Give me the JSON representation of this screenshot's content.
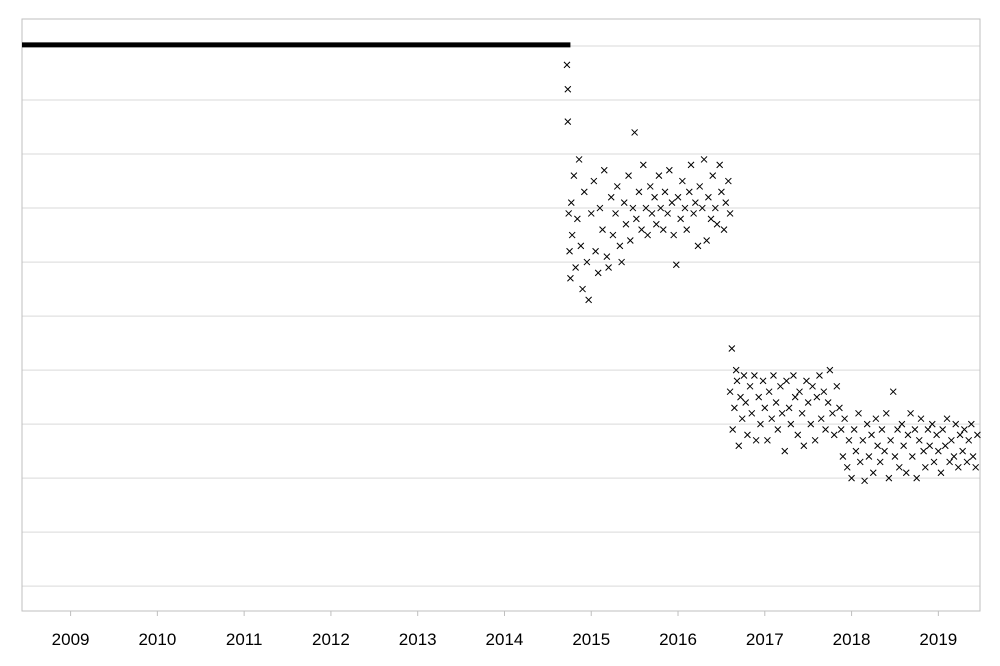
{
  "chart_data": {
    "type": "scatter",
    "title": "",
    "xlabel": "",
    "ylabel": "",
    "xlim": [
      2008.44,
      2019.48
    ],
    "ylim": [
      -0.46,
      10.5
    ],
    "y_gridlines": [
      0,
      1,
      2,
      3,
      4,
      5,
      6,
      7,
      8,
      9,
      10
    ],
    "y_tick_labels_shown": false,
    "grid": true,
    "legend": "none",
    "x_ticks": [
      2009,
      2010,
      2011,
      2012,
      2013,
      2014,
      2015,
      2016,
      2017,
      2018,
      2019
    ],
    "x_tick_labels": [
      "2009",
      "2010",
      "2011",
      "2012",
      "2013",
      "2014",
      "2015",
      "2016",
      "2017",
      "2018",
      "2019"
    ],
    "colors": {
      "marker": "#000000",
      "line": "#000000",
      "grid": "#d9d9d9",
      "frame": "#bfbfbf"
    },
    "series": [
      {
        "type": "line",
        "points": [
          [
            2008.44,
            10.02
          ],
          [
            2014.76,
            10.02
          ]
        ]
      },
      {
        "type": "scatter",
        "marker": "x",
        "points": [
          [
            2014.72,
            9.65
          ],
          [
            2014.73,
            9.2
          ],
          [
            2014.73,
            8.6
          ],
          [
            2014.74,
            6.9
          ],
          [
            2014.75,
            6.2
          ],
          [
            2014.76,
            5.7
          ],
          [
            2014.77,
            7.1
          ],
          [
            2014.78,
            6.5
          ],
          [
            2014.8,
            7.6
          ],
          [
            2014.82,
            5.9
          ],
          [
            2014.84,
            6.8
          ],
          [
            2014.86,
            7.9
          ],
          [
            2014.88,
            6.3
          ],
          [
            2014.9,
            5.5
          ],
          [
            2014.92,
            7.3
          ],
          [
            2014.95,
            6.0
          ],
          [
            2014.97,
            5.3
          ],
          [
            2015.0,
            6.9
          ],
          [
            2015.03,
            7.5
          ],
          [
            2015.05,
            6.2
          ],
          [
            2015.08,
            5.8
          ],
          [
            2015.1,
            7.0
          ],
          [
            2015.13,
            6.6
          ],
          [
            2015.15,
            7.7
          ],
          [
            2015.18,
            6.1
          ],
          [
            2015.2,
            5.9
          ],
          [
            2015.23,
            7.2
          ],
          [
            2015.25,
            6.5
          ],
          [
            2015.28,
            6.9
          ],
          [
            2015.3,
            7.4
          ],
          [
            2015.33,
            6.3
          ],
          [
            2015.35,
            6.0
          ],
          [
            2015.38,
            7.1
          ],
          [
            2015.4,
            6.7
          ],
          [
            2015.43,
            7.6
          ],
          [
            2015.45,
            6.4
          ],
          [
            2015.48,
            7.0
          ],
          [
            2015.5,
            8.4
          ],
          [
            2015.52,
            6.8
          ],
          [
            2015.55,
            7.3
          ],
          [
            2015.58,
            6.6
          ],
          [
            2015.6,
            7.8
          ],
          [
            2015.63,
            7.0
          ],
          [
            2015.65,
            6.5
          ],
          [
            2015.68,
            7.4
          ],
          [
            2015.7,
            6.9
          ],
          [
            2015.73,
            7.2
          ],
          [
            2015.75,
            6.7
          ],
          [
            2015.78,
            7.6
          ],
          [
            2015.8,
            7.0
          ],
          [
            2015.83,
            6.6
          ],
          [
            2015.85,
            7.3
          ],
          [
            2015.88,
            6.9
          ],
          [
            2015.9,
            7.7
          ],
          [
            2015.93,
            7.1
          ],
          [
            2015.95,
            6.5
          ],
          [
            2015.98,
            5.95
          ],
          [
            2016.0,
            7.2
          ],
          [
            2016.03,
            6.8
          ],
          [
            2016.05,
            7.5
          ],
          [
            2016.08,
            7.0
          ],
          [
            2016.1,
            6.6
          ],
          [
            2016.13,
            7.3
          ],
          [
            2016.15,
            7.8
          ],
          [
            2016.18,
            6.9
          ],
          [
            2016.2,
            7.1
          ],
          [
            2016.23,
            6.3
          ],
          [
            2016.25,
            7.4
          ],
          [
            2016.28,
            7.0
          ],
          [
            2016.3,
            7.9
          ],
          [
            2016.33,
            6.4
          ],
          [
            2016.35,
            7.2
          ],
          [
            2016.38,
            6.8
          ],
          [
            2016.4,
            7.6
          ],
          [
            2016.43,
            7.0
          ],
          [
            2016.45,
            6.7
          ],
          [
            2016.48,
            7.8
          ],
          [
            2016.5,
            7.3
          ],
          [
            2016.53,
            6.6
          ],
          [
            2016.55,
            7.1
          ],
          [
            2016.58,
            7.5
          ],
          [
            2016.6,
            6.9
          ],
          [
            2016.6,
            3.6
          ],
          [
            2016.62,
            4.4
          ],
          [
            2016.63,
            2.9
          ],
          [
            2016.65,
            3.3
          ],
          [
            2016.67,
            4.0
          ],
          [
            2016.68,
            3.8
          ],
          [
            2016.7,
            2.6
          ],
          [
            2016.72,
            3.5
          ],
          [
            2016.74,
            3.1
          ],
          [
            2016.76,
            3.9
          ],
          [
            2016.78,
            3.4
          ],
          [
            2016.8,
            2.8
          ],
          [
            2016.83,
            3.7
          ],
          [
            2016.85,
            3.2
          ],
          [
            2016.88,
            3.9
          ],
          [
            2016.9,
            2.7
          ],
          [
            2016.93,
            3.5
          ],
          [
            2016.95,
            3.0
          ],
          [
            2016.98,
            3.8
          ],
          [
            2017.0,
            3.3
          ],
          [
            2017.03,
            2.7
          ],
          [
            2017.05,
            3.6
          ],
          [
            2017.08,
            3.1
          ],
          [
            2017.1,
            3.9
          ],
          [
            2017.13,
            3.4
          ],
          [
            2017.15,
            2.9
          ],
          [
            2017.18,
            3.7
          ],
          [
            2017.2,
            3.2
          ],
          [
            2017.23,
            2.5
          ],
          [
            2017.25,
            3.8
          ],
          [
            2017.28,
            3.3
          ],
          [
            2017.3,
            3.0
          ],
          [
            2017.33,
            3.9
          ],
          [
            2017.35,
            3.5
          ],
          [
            2017.38,
            2.8
          ],
          [
            2017.4,
            3.6
          ],
          [
            2017.43,
            3.2
          ],
          [
            2017.45,
            2.6
          ],
          [
            2017.48,
            3.8
          ],
          [
            2017.5,
            3.4
          ],
          [
            2017.53,
            3.0
          ],
          [
            2017.55,
            3.7
          ],
          [
            2017.58,
            2.7
          ],
          [
            2017.6,
            3.5
          ],
          [
            2017.63,
            3.9
          ],
          [
            2017.65,
            3.1
          ],
          [
            2017.68,
            3.6
          ],
          [
            2017.7,
            2.9
          ],
          [
            2017.73,
            3.4
          ],
          [
            2017.75,
            4.0
          ],
          [
            2017.78,
            3.2
          ],
          [
            2017.8,
            2.8
          ],
          [
            2017.83,
            3.7
          ],
          [
            2017.86,
            3.3
          ],
          [
            2017.88,
            2.9
          ],
          [
            2017.9,
            2.4
          ],
          [
            2017.92,
            3.1
          ],
          [
            2017.95,
            2.2
          ],
          [
            2017.97,
            2.7
          ],
          [
            2018.0,
            2.0
          ],
          [
            2018.03,
            2.9
          ],
          [
            2018.05,
            2.5
          ],
          [
            2018.08,
            3.2
          ],
          [
            2018.1,
            2.3
          ],
          [
            2018.13,
            2.7
          ],
          [
            2018.15,
            1.95
          ],
          [
            2018.18,
            3.0
          ],
          [
            2018.2,
            2.4
          ],
          [
            2018.23,
            2.8
          ],
          [
            2018.25,
            2.1
          ],
          [
            2018.28,
            3.1
          ],
          [
            2018.3,
            2.6
          ],
          [
            2018.33,
            2.3
          ],
          [
            2018.35,
            2.9
          ],
          [
            2018.38,
            2.5
          ],
          [
            2018.4,
            3.2
          ],
          [
            2018.43,
            2.0
          ],
          [
            2018.45,
            2.7
          ],
          [
            2018.48,
            3.6
          ],
          [
            2018.5,
            2.4
          ],
          [
            2018.53,
            2.9
          ],
          [
            2018.55,
            2.2
          ],
          [
            2018.58,
            3.0
          ],
          [
            2018.6,
            2.6
          ],
          [
            2018.63,
            2.1
          ],
          [
            2018.65,
            2.8
          ],
          [
            2018.68,
            3.2
          ],
          [
            2018.7,
            2.4
          ],
          [
            2018.73,
            2.9
          ],
          [
            2018.75,
            2.0
          ],
          [
            2018.78,
            2.7
          ],
          [
            2018.8,
            3.1
          ],
          [
            2018.83,
            2.5
          ],
          [
            2018.85,
            2.2
          ],
          [
            2018.88,
            2.9
          ],
          [
            2018.9,
            2.6
          ],
          [
            2018.93,
            3.0
          ],
          [
            2018.95,
            2.3
          ],
          [
            2018.98,
            2.8
          ],
          [
            2019.0,
            2.5
          ],
          [
            2019.03,
            2.1
          ],
          [
            2019.05,
            2.9
          ],
          [
            2019.08,
            2.6
          ],
          [
            2019.1,
            3.1
          ],
          [
            2019.13,
            2.3
          ],
          [
            2019.15,
            2.7
          ],
          [
            2019.18,
            2.4
          ],
          [
            2019.2,
            3.0
          ],
          [
            2019.23,
            2.2
          ],
          [
            2019.25,
            2.8
          ],
          [
            2019.28,
            2.5
          ],
          [
            2019.3,
            2.9
          ],
          [
            2019.33,
            2.3
          ],
          [
            2019.35,
            2.7
          ],
          [
            2019.38,
            3.0
          ],
          [
            2019.4,
            2.4
          ],
          [
            2019.43,
            2.2
          ],
          [
            2019.45,
            2.8
          ]
        ]
      }
    ]
  }
}
